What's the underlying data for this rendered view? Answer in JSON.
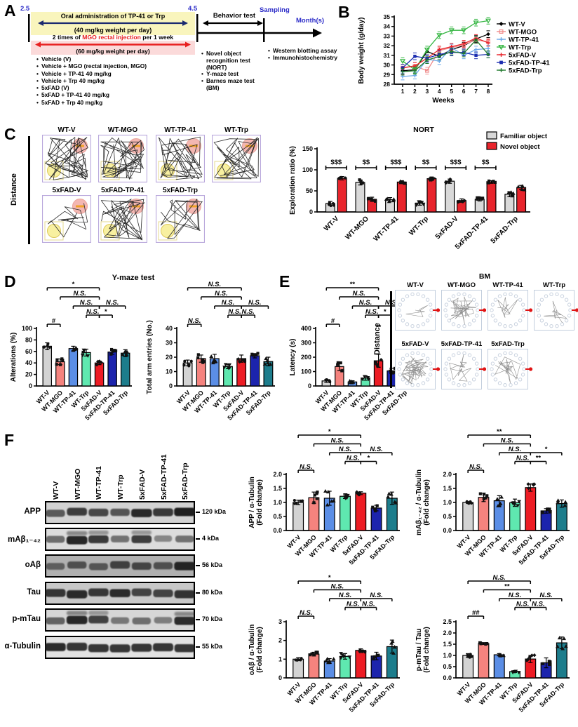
{
  "groups": [
    "WT-V",
    "WT-MGO",
    "WT-TP-41",
    "WT-Trp",
    "5xFAD-V",
    "5xFAD-TP-41",
    "5xFAD-Trp"
  ],
  "group_colors": [
    "#d3d3d3",
    "#f5837e",
    "#5b8ee6",
    "#5fe8b0",
    "#ed1c24",
    "#1c24ad",
    "#1d7d8c"
  ],
  "panelA": {
    "letter": "A",
    "start_month": "2.5",
    "end_month": "4.5",
    "oral_line1": "Oral administration of TP-41 or Trp",
    "oral_line2": "(40 mg/kg weight per day)",
    "mgo_line_parts": [
      "2 times of ",
      "MGO rectal injection",
      " per 1 week"
    ],
    "mgo_line2": "(60 mg/kg weight per day)",
    "group_bullets": [
      "Vehicle (V)",
      "Vehicle + MGO (rectal injection, MGO)",
      "Vehicle + TP-41 40 mg/kg",
      "Vehicle + Trp 40 mg/kg",
      "5xFAD (V)",
      "5xFAD + TP-41 40 mg/kg",
      "5xFAD + Trp 40 mg/kg"
    ],
    "behavior_title": "Behavior test",
    "behavior_bullets": [
      "Novel object recognition test (NORT)",
      "Y-maze test",
      "Barnes maze test (BM)"
    ],
    "sampling_label": "Sampling",
    "months_label": "Month(s)",
    "sampling_bullets": [
      "Western blotting assay",
      "Immunohistochemistry"
    ]
  },
  "panelB": {
    "letter": "B"
  },
  "panelC": {
    "letter": "C",
    "distance_label": "Distance",
    "tracks_row1": [
      {
        "label": "WT-V",
        "density": 46
      },
      {
        "label": "WT-MGO",
        "density": 44
      },
      {
        "label": "WT-TP-41",
        "density": 40
      },
      {
        "label": "WT-Trp",
        "density": 34
      }
    ],
    "tracks_row2": [
      {
        "label": "5xFAD-V",
        "density": 16
      },
      {
        "label": "5xFAD-TP-41",
        "density": 36
      },
      {
        "label": "5xFAD-Trp",
        "density": 20
      }
    ]
  },
  "panelD": {
    "letter": "D",
    "title": "Y-maze test"
  },
  "panelE": {
    "letter": "E",
    "bm_title": "BM",
    "distance_label": "Distance",
    "bm_row1": [
      {
        "label": "WT-V",
        "density": 6
      },
      {
        "label": "WT-MGO",
        "density": 40
      },
      {
        "label": "WT-TP-41",
        "density": 14
      },
      {
        "label": "WT-Trp",
        "density": 12
      }
    ],
    "bm_row2": [
      {
        "label": "5xFAD-V",
        "density": 55
      },
      {
        "label": "5xFAD-TP-41",
        "density": 22
      },
      {
        "label": "5xFAD-Trp",
        "density": 30
      }
    ]
  },
  "panelF": {
    "letter": "F",
    "blot_rows": [
      {
        "label": "APP",
        "kda": "120 kDa",
        "bg": "#d2d2d2",
        "intensities": [
          0.55,
          0.78,
          0.7,
          0.6,
          0.92,
          0.8,
          1.0
        ]
      },
      {
        "label": "mAβ₁₋₄₂",
        "kda": "4 kDa",
        "bg": "#dcdcdc",
        "smear": true,
        "intensities": [
          0.45,
          0.95,
          0.8,
          0.4,
          0.78,
          0.25,
          0.42
        ]
      },
      {
        "label": "oAβ",
        "kda": "56 kDa",
        "bg": "#b0b0b0",
        "intensities": [
          0.42,
          0.55,
          0.5,
          0.7,
          0.65,
          0.55,
          0.95
        ]
      },
      {
        "label": "Tau",
        "kda": "80 kDa",
        "bg": "#c8c8c8",
        "intensities": [
          0.82,
          0.9,
          0.8,
          0.9,
          0.72,
          0.72,
          0.85
        ]
      },
      {
        "label": "p-mTau",
        "kda": "70 kDa",
        "bg": "#d6d6d6",
        "smear": true,
        "intensities": [
          0.5,
          0.95,
          0.75,
          0.35,
          0.42,
          0.3,
          0.9
        ]
      },
      {
        "label": "α-Tubulin",
        "kda": "55 kDa",
        "bg": "#e2e2e2",
        "intensities": [
          0.92,
          0.85,
          0.85,
          0.85,
          0.85,
          0.85,
          0.85
        ]
      }
    ]
  },
  "chart_data": [
    {
      "id": "body_weight",
      "type": "line",
      "xlabel": "Weeks",
      "ylabel": "Body weight (g/day)",
      "ylim": [
        28,
        35
      ],
      "yticks": [
        28,
        29,
        30,
        31,
        32,
        33,
        34,
        35
      ],
      "x": [
        1,
        2,
        3,
        4,
        5,
        6,
        7,
        8
      ],
      "error": 0.35,
      "legend_position": "right",
      "series": [
        {
          "name": "WT-V",
          "color": "#000000",
          "marker": "diamond",
          "values": [
            29.4,
            29.5,
            31.4,
            30.9,
            31.6,
            32.0,
            32.7,
            33.2
          ]
        },
        {
          "name": "WT-MGO",
          "color": "#f08c8c",
          "marker": "osquare",
          "values": [
            29.7,
            29.9,
            29.4,
            31.5,
            31.8,
            32.1,
            32.6,
            32.4
          ]
        },
        {
          "name": "WT-TP-41",
          "color": "#6aa9e8",
          "marker": "plus",
          "values": [
            28.8,
            28.9,
            30.6,
            30.4,
            31.8,
            31.0,
            31.6,
            31.7
          ]
        },
        {
          "name": "WT-Trp",
          "color": "#33b540",
          "marker": "otri",
          "values": [
            30.4,
            29.5,
            31.6,
            33.1,
            33.6,
            33.6,
            34.4,
            34.6
          ]
        },
        {
          "name": "5xFAD-V",
          "color": "#e8232a",
          "marker": "plus",
          "values": [
            29.7,
            29.9,
            30.7,
            31.6,
            31.9,
            32.2,
            32.8,
            32.3
          ]
        },
        {
          "name": "5xFAD-TP-41",
          "color": "#1c2db0",
          "marker": "fsquare",
          "values": [
            29.7,
            30.9,
            30.7,
            31.1,
            31.3,
            31.3,
            31.0,
            31.1
          ]
        },
        {
          "name": "5xFAD-Trp",
          "color": "#217a2e",
          "marker": "plus",
          "values": [
            29.3,
            29.4,
            30.5,
            30.9,
            31.4,
            31.2,
            32.6,
            31.1
          ]
        }
      ]
    },
    {
      "id": "nort",
      "type": "bar",
      "grouped": true,
      "title": "NORT",
      "ylabel": [
        "Exploration ratio (%)"
      ],
      "ylim": [
        0,
        150
      ],
      "yticks": [
        0,
        50,
        100,
        150
      ],
      "series": [
        {
          "name": "Familiar object",
          "color": "#d9d9d9",
          "values": [
            20,
            70,
            29,
            21,
            73,
            30,
            42
          ],
          "errors": [
            5,
            6,
            5,
            5,
            5,
            4,
            6
          ]
        },
        {
          "name": "Novel object",
          "color": "#e8242c",
          "values": [
            80,
            30,
            71,
            79,
            27,
            71,
            58
          ],
          "errors": [
            4,
            5,
            3,
            4,
            4,
            3,
            5
          ]
        }
      ],
      "pair_sig": [
        "$$$",
        "$$",
        "$$$",
        "$$",
        "$$$",
        "$$",
        ""
      ]
    },
    {
      "id": "alterations",
      "type": "bar",
      "ylabel": [
        "Alterations (%)"
      ],
      "ylim": [
        0,
        100
      ],
      "yticks": [
        0,
        20,
        40,
        60,
        80,
        100
      ],
      "values": [
        69,
        42,
        65,
        58,
        40,
        59,
        57
      ],
      "errors": [
        6,
        5,
        4,
        6,
        3,
        4,
        6
      ],
      "brackets": [
        {
          "label": "*",
          "from": 0,
          "to": 4,
          "row": 0
        },
        {
          "label": "N.S.",
          "from": 1,
          "to": 4,
          "row": 1
        },
        {
          "label": "N.S.",
          "from": 2,
          "to": 4,
          "row": 2
        },
        {
          "label": "N.S.",
          "from": 4,
          "to": 6,
          "row": 2
        },
        {
          "label": "N.S.",
          "from": 3,
          "to": 4,
          "row": 3
        },
        {
          "label": "*",
          "from": 4,
          "to": 5,
          "row": 3
        },
        {
          "label": "#",
          "from": 0,
          "to": 1,
          "row": 4
        }
      ]
    },
    {
      "id": "arm_entries",
      "type": "bar",
      "ylabel": [
        "Total arm entries (No.)"
      ],
      "ylim": [
        0,
        40
      ],
      "yticks": [
        0,
        10,
        20,
        30,
        40
      ],
      "values": [
        16,
        19,
        19,
        13.5,
        19,
        21,
        17
      ],
      "errors": [
        2,
        2.5,
        3,
        1.5,
        2.5,
        1.5,
        3
      ],
      "brackets": [
        {
          "label": "N.S.",
          "from": 0,
          "to": 4,
          "row": 0
        },
        {
          "label": "N.S.",
          "from": 1,
          "to": 4,
          "row": 1
        },
        {
          "label": "N.S.",
          "from": 2,
          "to": 4,
          "row": 2
        },
        {
          "label": "N.S.",
          "from": 4,
          "to": 6,
          "row": 2
        },
        {
          "label": "N.S.",
          "from": 3,
          "to": 4,
          "row": 3
        },
        {
          "label": "N.S.",
          "from": 4,
          "to": 5,
          "row": 3
        },
        {
          "label": "N.S.",
          "from": 0,
          "to": 1,
          "row": 4
        }
      ]
    },
    {
      "id": "latency",
      "type": "bar",
      "ylabel": [
        "Latency (s)"
      ],
      "ylim": [
        0,
        400
      ],
      "yticks": [
        0,
        100,
        200,
        300,
        400
      ],
      "values": [
        35,
        135,
        28,
        55,
        175,
        105,
        132
      ],
      "errors": [
        10,
        28,
        8,
        15,
        45,
        18,
        25
      ],
      "brackets": [
        {
          "label": "**",
          "from": 0,
          "to": 4,
          "row": 0
        },
        {
          "label": "N.S.",
          "from": 1,
          "to": 4,
          "row": 1
        },
        {
          "label": "N.S.",
          "from": 2,
          "to": 4,
          "row": 2
        },
        {
          "label": "N.S.",
          "from": 4,
          "to": 6,
          "row": 2
        },
        {
          "label": "N.S.",
          "from": 3,
          "to": 4,
          "row": 3
        },
        {
          "label": "*",
          "from": 4,
          "to": 5,
          "row": 3
        },
        {
          "label": "#",
          "from": 0,
          "to": 1,
          "row": 4
        }
      ],
      "annotations": [
        {
          "bar": 4,
          "text": "**"
        }
      ]
    },
    {
      "id": "app",
      "type": "bar",
      "ylabel": [
        "APP / α-Tubulin",
        "(Fold change)"
      ],
      "ylim": [
        0,
        2
      ],
      "yticks": [
        0,
        0.5,
        1,
        1.5,
        2
      ],
      "decimals": 1,
      "values": [
        1.0,
        1.17,
        1.15,
        1.22,
        1.33,
        0.8,
        1.15
      ],
      "errors": [
        0.08,
        0.2,
        0.25,
        0.08,
        0.05,
        0.1,
        0.22
      ],
      "brackets": [
        {
          "label": "*",
          "from": 0,
          "to": 4,
          "row": 0
        },
        {
          "label": "N.S.",
          "from": 1,
          "to": 4,
          "row": 1
        },
        {
          "label": "N.S.",
          "from": 2,
          "to": 4,
          "row": 2
        },
        {
          "label": "N.S.",
          "from": 4,
          "to": 6,
          "row": 2
        },
        {
          "label": "N.S.",
          "from": 3,
          "to": 4,
          "row": 3
        },
        {
          "label": "*",
          "from": 4,
          "to": 5,
          "row": 3
        },
        {
          "label": "N.S.",
          "from": 0,
          "to": 1,
          "row": 4
        }
      ]
    },
    {
      "id": "mab",
      "type": "bar",
      "ylabel": [
        "mAβ₁₋₄₂ / α-Tubulin",
        "(Fold change)"
      ],
      "ylim": [
        0,
        2
      ],
      "yticks": [
        0,
        0.5,
        1,
        1.5,
        2
      ],
      "decimals": 1,
      "values": [
        1.0,
        1.18,
        1.06,
        0.99,
        1.53,
        0.7,
        0.96
      ],
      "errors": [
        0.03,
        0.15,
        0.18,
        0.13,
        0.13,
        0.08,
        0.13
      ],
      "brackets": [
        {
          "label": "**",
          "from": 0,
          "to": 4,
          "row": 0
        },
        {
          "label": "N.S.",
          "from": 1,
          "to": 4,
          "row": 1
        },
        {
          "label": "N.S.",
          "from": 2,
          "to": 4,
          "row": 2
        },
        {
          "label": "*",
          "from": 4,
          "to": 6,
          "row": 2
        },
        {
          "label": "N.S.",
          "from": 3,
          "to": 4,
          "row": 3
        },
        {
          "label": "**",
          "from": 4,
          "to": 5,
          "row": 3
        },
        {
          "label": "N.S.",
          "from": 0,
          "to": 1,
          "row": 4
        }
      ]
    },
    {
      "id": "oab",
      "type": "bar",
      "ylabel": [
        "oAβ / α-Tubulin",
        "(Fold change)"
      ],
      "ylim": [
        0,
        3
      ],
      "yticks": [
        0,
        1,
        2,
        3
      ],
      "values": [
        1.0,
        1.27,
        0.9,
        1.15,
        1.47,
        1.17,
        1.67
      ],
      "errors": [
        0.08,
        0.1,
        0.13,
        0.15,
        0.08,
        0.2,
        0.35
      ],
      "brackets": [
        {
          "label": "*",
          "from": 0,
          "to": 4,
          "row": 0
        },
        {
          "label": "N.S.",
          "from": 1,
          "to": 4,
          "row": 1
        },
        {
          "label": "N.S.",
          "from": 2,
          "to": 4,
          "row": 2
        },
        {
          "label": "N.S.",
          "from": 4,
          "to": 6,
          "row": 2
        },
        {
          "label": "N.S.",
          "from": 3,
          "to": 4,
          "row": 3
        },
        {
          "label": "N.S.",
          "from": 4,
          "to": 5,
          "row": 3
        },
        {
          "label": "N.S.",
          "from": 0,
          "to": 1,
          "row": 4
        }
      ]
    },
    {
      "id": "pmtau",
      "type": "bar",
      "ylabel": [
        "p-mTau / Tau",
        "(Fold change)"
      ],
      "ylim": [
        0,
        2.5
      ],
      "yticks": [
        0,
        0.5,
        1,
        1.5,
        2,
        2.5
      ],
      "decimals": 1,
      "values": [
        1.0,
        1.53,
        1.03,
        0.28,
        0.84,
        0.67,
        1.56
      ],
      "errors": [
        0.08,
        0.04,
        0.05,
        0.04,
        0.16,
        0.22,
        0.26
      ],
      "brackets": [
        {
          "label": "N.S.",
          "from": 0,
          "to": 4,
          "row": 0
        },
        {
          "label": "**",
          "from": 1,
          "to": 4,
          "row": 1
        },
        {
          "label": "N.S.",
          "from": 2,
          "to": 4,
          "row": 2
        },
        {
          "label": "N.S.",
          "from": 4,
          "to": 6,
          "row": 2
        },
        {
          "label": "N.S.",
          "from": 3,
          "to": 4,
          "row": 3
        },
        {
          "label": "N.S.",
          "from": 4,
          "to": 5,
          "row": 3
        },
        {
          "label": "##",
          "from": 0,
          "to": 1,
          "row": 4
        }
      ]
    }
  ]
}
